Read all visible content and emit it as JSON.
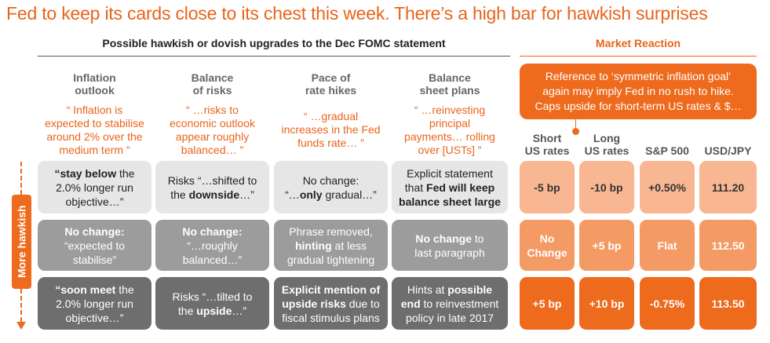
{
  "title": "Fed to keep its cards close to its chest this week. There’s a high bar for hawkish surprises",
  "left_header": "Possible hawkish or dovish upgrades to the Dec FOMC statement",
  "right_header": "Market Reaction",
  "axis_label": "More hawkish",
  "columns": [
    {
      "h1": "Inflation",
      "h2": "outlook",
      "q": [
        "“ Inflation is",
        "expected to stabilise",
        "around 2% over the",
        "medium term ”"
      ]
    },
    {
      "h1": "Balance",
      "h2": "of risks",
      "q": [
        "“ …risks to",
        "economic outlook",
        "appear roughly",
        "balanced… ”"
      ]
    },
    {
      "h1": "Pace of",
      "h2": "rate hikes",
      "q": [
        "“ …gradual",
        "increases in the Fed",
        "funds rate… ”"
      ]
    },
    {
      "h1": "Balance",
      "h2": "sheet plans",
      "q": [
        "“ …reinvesting",
        "principal",
        "payments… rolling",
        "over [USTs] ”"
      ]
    }
  ],
  "rows": [
    [
      {
        "p1b": "“stay below",
        "p1": " the",
        "l2": "2.0% longer run",
        "l3": "objective…”"
      },
      {
        "a": "Risks “…shifted to",
        "b1": "the ",
        "bb": "downside",
        "b2": "…”"
      },
      {
        "a": "No change:",
        "b1": "“…",
        "bb": "only",
        "b2": " gradual…”"
      },
      {
        "a": "Explicit statement",
        "b1": "that ",
        "bb": "Fed will keep",
        "c": "balance sheet large"
      }
    ],
    [
      {
        "a": "No change:",
        "b": "“expected to",
        "c": "stabilise”"
      },
      {
        "a": "No change:",
        "b": "“…roughly",
        "c": "balanced…”"
      },
      {
        "a": "Phrase removed,",
        "bb": "hinting",
        "b2": " at less",
        "c": "gradual tightening"
      },
      {
        "ab": "No change",
        "a2": " to",
        "c": "last paragraph"
      }
    ],
    [
      {
        "p1b": "“soon meet",
        "p1": " the",
        "l2": "2.0% longer run",
        "l3": "objective…”"
      },
      {
        "a": "Risks “…tilted to",
        "b1": "the ",
        "bb": "upside",
        "b2": "…”"
      },
      {
        "ab": "Explicit mention of",
        "bb": "upside risks",
        "b2": " due to",
        "c": "fiscal stimulus plans"
      },
      {
        "a": "Hints at ",
        "abb": "possible",
        "bb": "end",
        "b2": " to reinvestment",
        "c": "policy in late 2017"
      }
    ]
  ],
  "callout": [
    "Reference to ‘symmetric inflation goal’",
    "again may imply Fed in no rush to hike.",
    "Caps upside for short-term US rates & $…"
  ],
  "market_heads": [
    {
      "h1": "Short",
      "h2": "US rates"
    },
    {
      "h1": "Long",
      "h2": "US rates"
    },
    {
      "h1": "",
      "h2": "S&P 500"
    },
    {
      "h1": "",
      "h2": "USD/JPY"
    }
  ],
  "market": [
    [
      "-5 bp",
      "-10 bp",
      "+0.50%",
      "111.20"
    ],
    [
      "No Change",
      "+5 bp",
      "Flat",
      "112.50"
    ],
    [
      "+5 bp",
      "+10 bp",
      "-0.75%",
      "113.50"
    ]
  ],
  "colors": {
    "accent": "#ee6a1d",
    "row1": "#e6e6e6",
    "row2": "#9c9c9c",
    "row3": "#6e6e6e"
  }
}
